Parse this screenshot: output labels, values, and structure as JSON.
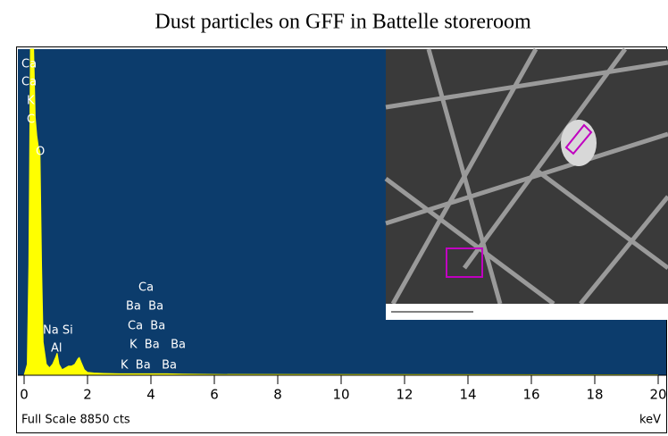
{
  "chart_data": {
    "type": "line",
    "title": "Dust particles on GFF in Battelle storeroom",
    "footer": "Full Scale 8850 cts",
    "xlabel": "keV",
    "x": [
      0,
      0.1,
      0.15,
      0.2,
      0.25,
      0.3,
      0.35,
      0.4,
      0.45,
      0.5,
      0.55,
      0.6,
      0.7,
      0.8,
      0.9,
      1.0,
      1.04,
      1.1,
      1.2,
      1.3,
      1.4,
      1.5,
      1.6,
      1.7,
      1.74,
      1.8,
      1.9,
      2.0,
      2.2,
      2.5,
      3.0,
      3.5,
      4.0,
      4.5,
      5.0,
      6.0,
      20
    ],
    "series": [
      {
        "name": "spectrum",
        "color": "#ffff00",
        "values": [
          0,
          300,
          3000,
          8850,
          8850,
          8850,
          7000,
          6500,
          6200,
          6060,
          3000,
          900,
          300,
          200,
          300,
          500,
          600,
          300,
          150,
          200,
          250,
          250,
          300,
          450,
          480,
          350,
          150,
          80,
          60,
          50,
          40,
          40,
          40,
          40,
          30,
          20,
          10
        ]
      }
    ],
    "annotations": [
      "Ca",
      "Ca",
      "K",
      "C",
      "O",
      "Ca",
      "Ba  Ba",
      "Ca  Ba",
      "K  Ba   Ba",
      "K  Ba   Ba",
      "Na Si",
      "Al"
    ],
    "xlim": [
      0,
      20
    ],
    "ylim": [
      0,
      8850
    ],
    "xticks": [
      0,
      2,
      4,
      6,
      8,
      10,
      12,
      14,
      16,
      18,
      20
    ]
  }
}
